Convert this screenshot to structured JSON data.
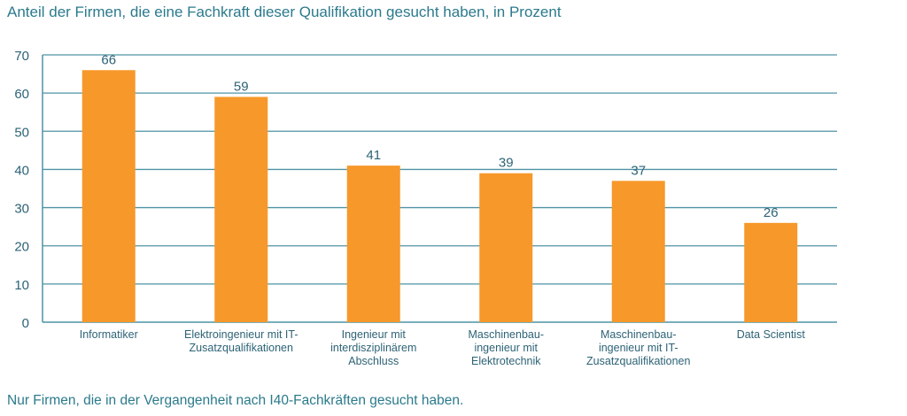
{
  "chart_data": {
    "type": "bar",
    "title": "Anteil der Firmen, die eine Fachkraft dieser Qualifikation gesucht haben, in Prozent",
    "footnote": "Nur Firmen, die in der Vergangenheit nach I40-Fachkräften gesucht haben.",
    "categories": [
      [
        "Informatiker"
      ],
      [
        "Elektroingenieur mit IT-",
        "Zusatzqualifikationen"
      ],
      [
        "Ingenieur mit",
        "interdisziplinärem",
        "Abschluss"
      ],
      [
        "Maschinenbau-",
        "ingenieur mit",
        "Elektrotechnik"
      ],
      [
        "Maschinenbau-",
        "ingenieur mit IT-",
        "Zusatzqualifikationen"
      ],
      [
        "Data Scientist"
      ]
    ],
    "values": [
      66,
      59,
      41,
      39,
      37,
      26
    ],
    "ylim": [
      0,
      70
    ],
    "yticks": [
      0,
      10,
      20,
      30,
      40,
      50,
      60,
      70
    ],
    "grid": true,
    "colors": {
      "bar": "#f7982a",
      "grid": "#4f93a5",
      "text": "#2d6376"
    }
  }
}
